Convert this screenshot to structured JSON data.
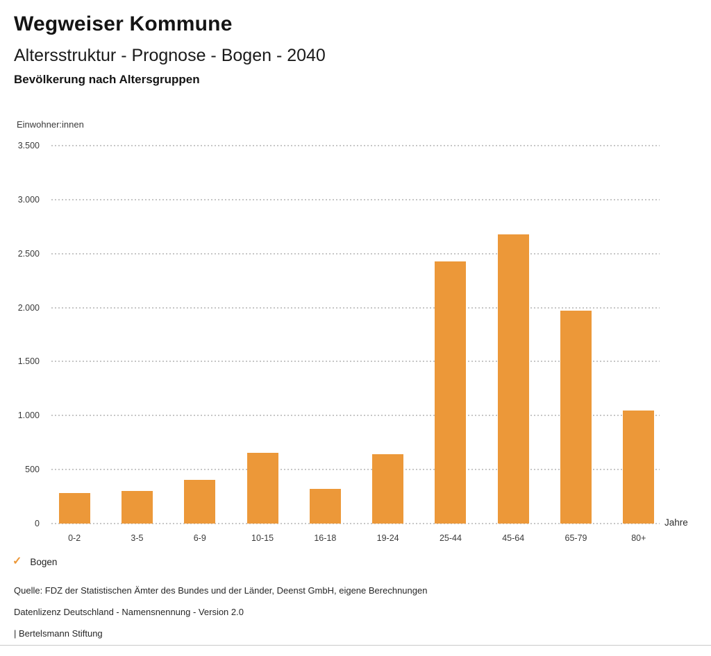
{
  "header": {
    "title": "Wegweiser Kommune",
    "subtitle": "Altersstruktur - Prognose - Bogen - 2040",
    "chart_heading": "Bevölkerung nach Altersgruppen"
  },
  "axes": {
    "y_title": "Einwohner:innen",
    "x_title": "Jahre"
  },
  "legend": {
    "items": [
      {
        "label": "Bogen",
        "checked": true,
        "check_glyph": "✓"
      }
    ]
  },
  "footer": {
    "source": "Quelle: FDZ der Statistischen Ämter des Bundes und der Länder, Deenst GmbH, eigene Berechnungen",
    "license": "Datenlizenz Deutschland - Namensnennung - Version 2.0",
    "attribution": "| Bertelsmann Stiftung"
  },
  "colors": {
    "bar": "#EC9839",
    "legend_check": "#EC9839",
    "gridline": "#c6c6c6"
  },
  "chart_data": {
    "type": "bar",
    "title": "Bevölkerung nach Altersgruppen",
    "series_name": "Bogen",
    "categories": [
      "0-2",
      "3-5",
      "6-9",
      "10-15",
      "16-18",
      "19-24",
      "25-44",
      "45-64",
      "65-79",
      "80+"
    ],
    "values": [
      285,
      300,
      405,
      655,
      320,
      640,
      2425,
      2680,
      1970,
      1045
    ],
    "xlabel": "Jahre",
    "ylabel": "Einwohner:innen",
    "ylim": [
      0,
      3500
    ],
    "ytick_interval": 500,
    "ytick_labels": [
      "0",
      "500",
      "1.000",
      "1.500",
      "2.000",
      "2.500",
      "3.000",
      "3.500"
    ],
    "grid": "horizontal-dotted",
    "legend_position": "bottom-left"
  }
}
